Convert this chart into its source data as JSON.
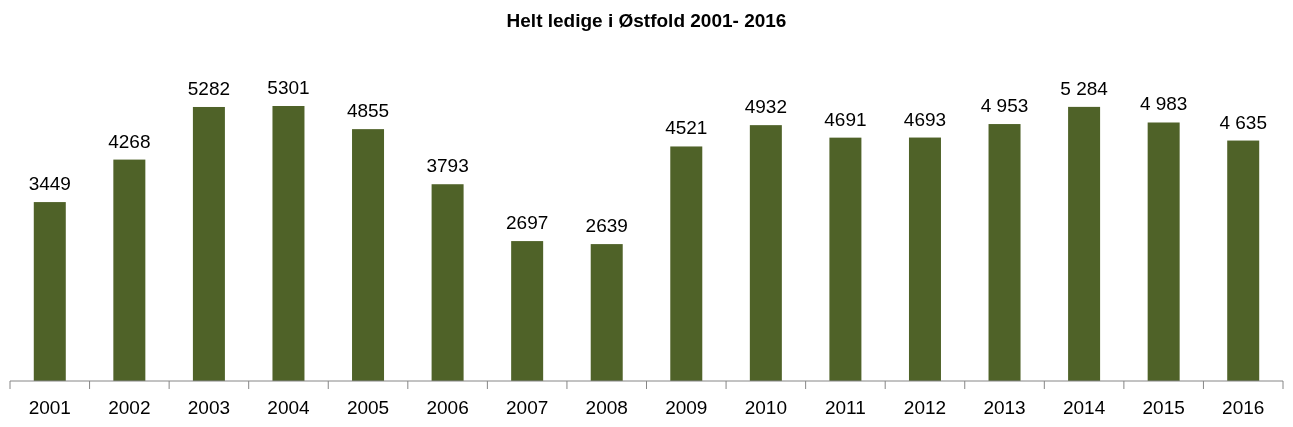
{
  "chart_data": {
    "type": "bar",
    "title": "Helt ledige i Østfold 2001- 2016",
    "categories": [
      "2001",
      "2002",
      "2003",
      "2004",
      "2005",
      "2006",
      "2007",
      "2008",
      "2009",
      "2010",
      "2011",
      "2012",
      "2013",
      "2014",
      "2015",
      "2016"
    ],
    "values": [
      3449,
      4268,
      5282,
      5301,
      4855,
      3793,
      2697,
      2639,
      4521,
      4932,
      4691,
      4693,
      4953,
      5284,
      4983,
      4635
    ],
    "value_labels": [
      "3449",
      "4268",
      "5282",
      "5301",
      "4855",
      "3793",
      "2697",
      "2639",
      "4521",
      "4932",
      "4691",
      "4693",
      "4 953",
      "5 284",
      "4 983",
      "4 635"
    ],
    "color": "#4f6228"
  }
}
